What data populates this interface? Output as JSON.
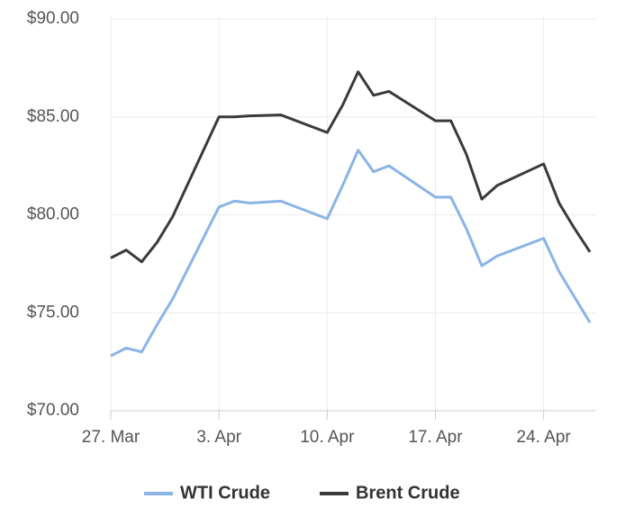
{
  "chart_data": {
    "type": "line",
    "x": [
      0,
      1,
      2,
      3,
      4,
      7,
      8,
      9,
      11,
      14,
      15,
      16,
      17,
      18,
      21,
      22,
      23,
      24,
      25,
      28,
      29,
      30,
      31
    ],
    "series": [
      {
        "name": "WTI Crude",
        "color": "#8ab4e6",
        "values": [
          72.8,
          73.2,
          73.0,
          74.4,
          75.7,
          80.4,
          80.7,
          80.6,
          80.7,
          79.8,
          81.5,
          83.3,
          82.2,
          82.5,
          80.9,
          80.9,
          79.3,
          77.4,
          77.9,
          78.8,
          77.1,
          75.8,
          74.5
        ]
      },
      {
        "name": "Brent Crude",
        "color": "#3a3a3a",
        "values": [
          77.8,
          78.2,
          77.6,
          78.6,
          79.9,
          85.0,
          85.0,
          85.05,
          85.1,
          84.2,
          85.6,
          87.3,
          86.1,
          86.3,
          84.8,
          84.8,
          83.1,
          80.8,
          81.5,
          82.6,
          80.6,
          79.3,
          78.1
        ]
      }
    ],
    "xlim": [
      0,
      31.4
    ],
    "xticks": [
      {
        "value": 0,
        "label": "27. Mar"
      },
      {
        "value": 7,
        "label": "3. Apr"
      },
      {
        "value": 14,
        "label": "10. Apr"
      },
      {
        "value": 21,
        "label": "17. Apr"
      },
      {
        "value": 28,
        "label": "24. Apr"
      }
    ],
    "ylim": [
      70,
      90
    ],
    "yticks": [
      {
        "value": 70,
        "label": "$70.00"
      },
      {
        "value": 75,
        "label": "$75.00"
      },
      {
        "value": 80,
        "label": "$80.00"
      },
      {
        "value": 85,
        "label": "$85.00"
      },
      {
        "value": 90,
        "label": "$90.00"
      }
    ],
    "grid": true,
    "legend": "bottom"
  }
}
